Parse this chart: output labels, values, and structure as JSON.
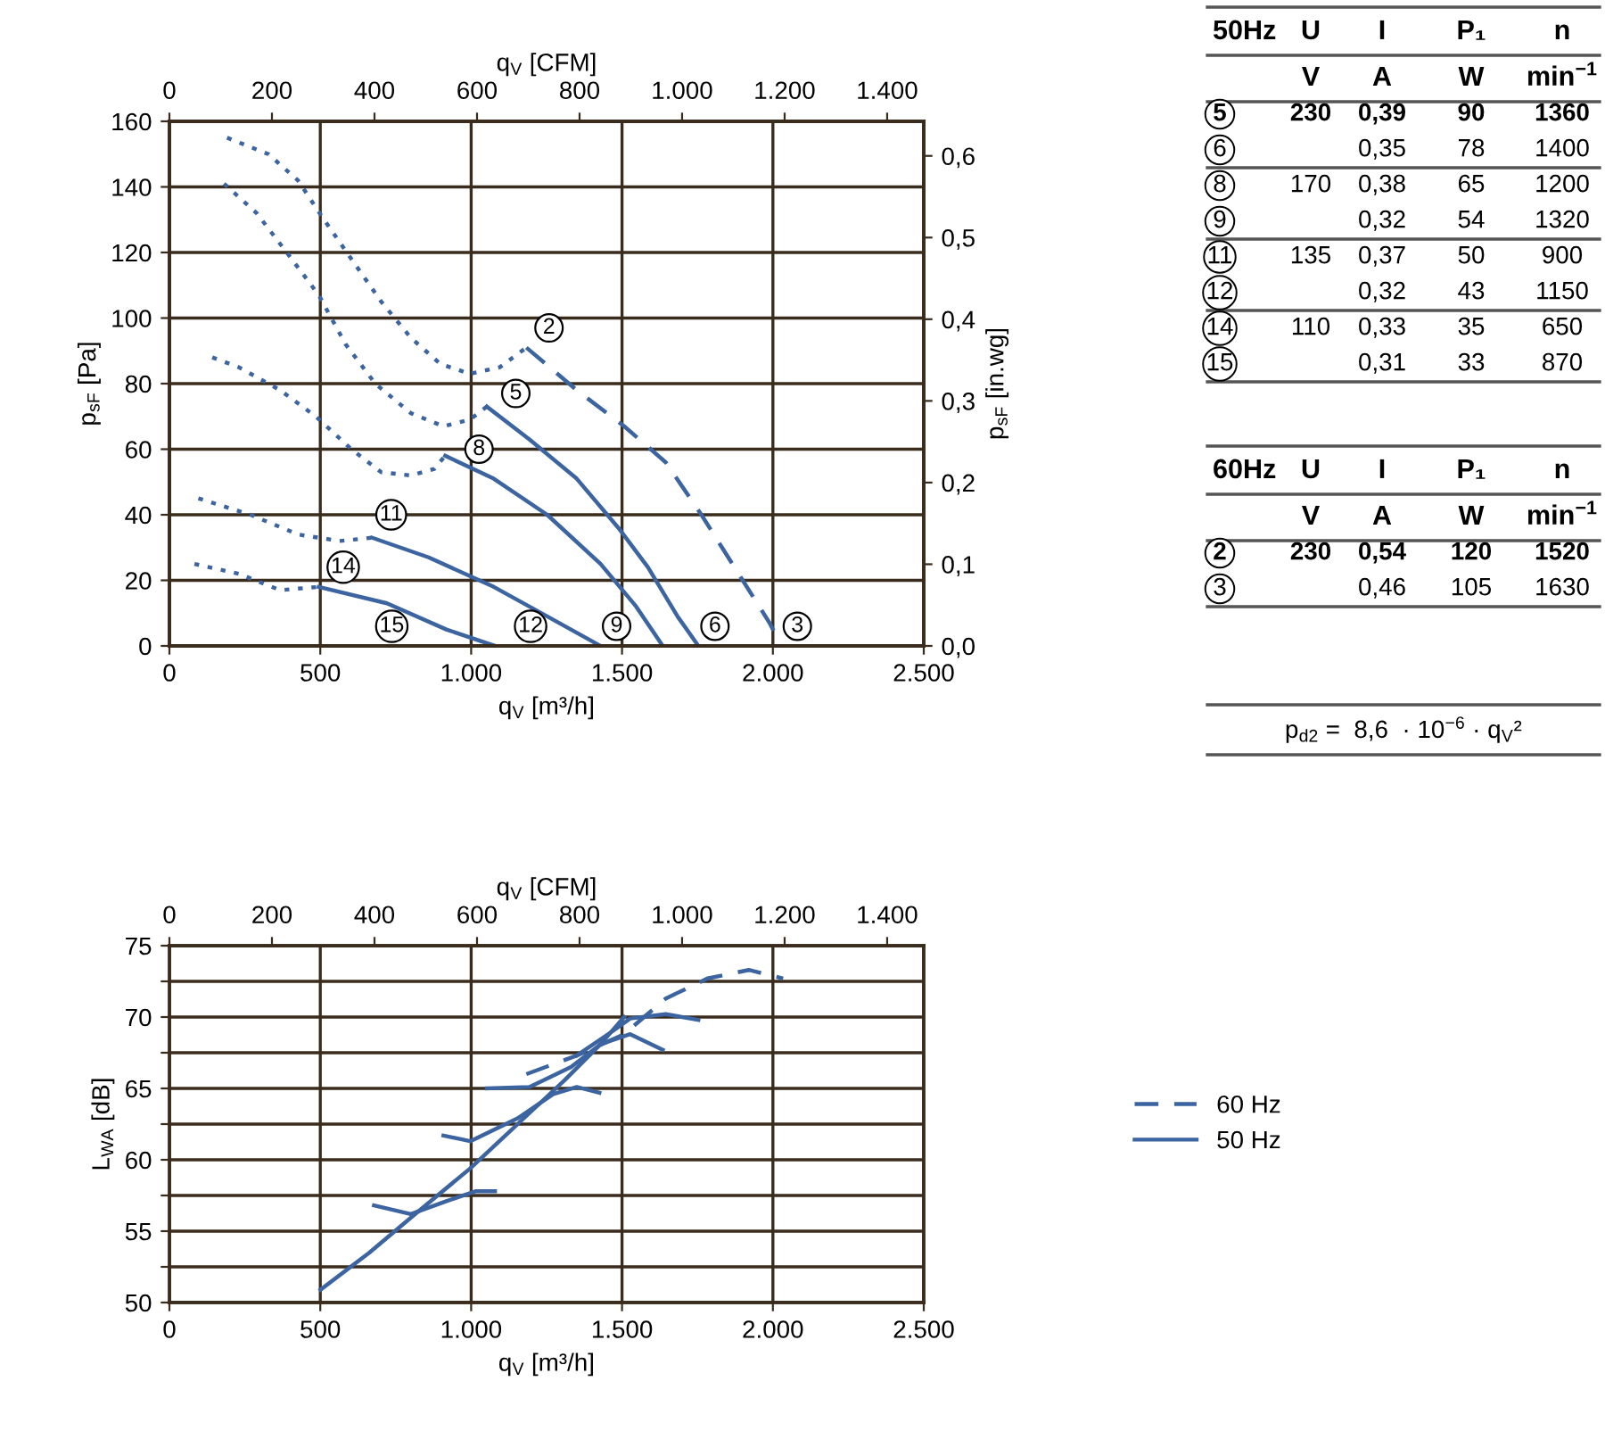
{
  "chart_data": [
    {
      "type": "line",
      "xlabel": "q$_{V}$ [m³/h]",
      "ylabel": "p$_{sF}$ [Pa]",
      "y2label": "p$_{sF}$ [in.wg]",
      "x2label": "q$_{V}$ [CFM]",
      "xlim": [
        0,
        2500
      ],
      "xticks": [
        0,
        500,
        {
          "value": 1000,
          "label": "1.000"
        },
        {
          "value": 1500,
          "label": "1.500"
        },
        {
          "value": 2000,
          "label": "2.000"
        },
        {
          "value": 2500,
          "label": "2.500"
        }
      ],
      "ylim": [
        0,
        160
      ],
      "yticks": [
        0,
        20,
        40,
        60,
        80,
        100,
        120,
        140,
        160
      ],
      "y2lim": [
        0,
        0.6423
      ],
      "y2ticks": [
        {
          "value": 0,
          "label": "0,0"
        },
        {
          "value": 0.1,
          "label": "0,1"
        },
        {
          "value": 0.2,
          "label": "0,2"
        },
        {
          "value": 0.3,
          "label": "0,3"
        },
        {
          "value": 0.4,
          "label": "0,4"
        },
        {
          "value": 0.5,
          "label": "0,5"
        },
        {
          "value": 0.6,
          "label": "0,6"
        }
      ],
      "x2lim": [
        0,
        1471.4
      ],
      "x2ticks": [
        0,
        200,
        400,
        600,
        800,
        {
          "value": 1000,
          "label": "1.000"
        },
        {
          "value": 1200,
          "label": "1.200"
        },
        {
          "value": 1400,
          "label": "1.400"
        }
      ],
      "grid": true,
      "marker": "none",
      "series": [
        {
          "type": "line",
          "line_style": "dotted",
          "color": "#3b64a0",
          "x": [
            191,
            328,
            426,
            505,
            603,
            702,
            800,
            898,
            996,
            1095,
            1183
          ],
          "values": [
            155,
            150,
            142,
            131,
            118,
            105,
            94,
            86,
            83,
            85,
            91
          ]
        },
        {
          "type": "line",
          "line_style": "dashed",
          "color": "#3b64a0",
          "x": [
            1183,
            1350,
            1507,
            1645,
            1763,
            1900,
            1989,
            2028
          ],
          "values": [
            91,
            78,
            67,
            56,
            40,
            20,
            7,
            0
          ]
        },
        {
          "type": "line",
          "line_style": "dotted",
          "color": "#3b64a0",
          "x": [
            181,
            289,
            397,
            495,
            584,
            682,
            800,
            908,
            996,
            1052
          ],
          "values": [
            141,
            132,
            119,
            107,
            92,
            80,
            71,
            67,
            69,
            73
          ]
        },
        {
          "type": "line",
          "line_style": "solid",
          "color": "#3b64a0",
          "x": [
            1052,
            1193,
            1350,
            1488,
            1586,
            1684,
            1753
          ],
          "values": [
            73,
            63,
            51,
            36,
            24,
            9,
            0
          ]
        },
        {
          "type": "line",
          "line_style": "dotted",
          "color": "#3b64a0",
          "x": [
            142,
            230,
            367,
            485,
            603,
            702,
            800,
            878,
            914
          ],
          "values": [
            88,
            85,
            78,
            70,
            60,
            53,
            52,
            54,
            58
          ]
        },
        {
          "type": "line",
          "line_style": "solid",
          "color": "#3b64a0",
          "x": [
            914,
            1075,
            1252,
            1429,
            1547,
            1635
          ],
          "values": [
            58,
            51,
            40,
            25,
            12,
            0
          ]
        },
        {
          "type": "line",
          "line_style": "dotted",
          "color": "#3b64a0",
          "x": [
            96,
            269,
            426,
            564,
            672
          ],
          "values": [
            45,
            40,
            34,
            32,
            33
          ]
        },
        {
          "type": "line",
          "line_style": "solid",
          "color": "#3b64a0",
          "x": [
            672,
            859,
            1075,
            1252,
            1429
          ],
          "values": [
            33,
            27,
            18,
            9,
            0
          ]
        },
        {
          "type": "line",
          "line_style": "dotted",
          "color": "#3b64a0",
          "x": [
            83,
            230,
            367,
            495
          ],
          "values": [
            25,
            22,
            17,
            18
          ]
        },
        {
          "type": "line",
          "line_style": "solid",
          "color": "#3b64a0",
          "x": [
            495,
            721,
            918,
            1079
          ],
          "values": [
            18,
            13,
            5,
            0
          ]
        }
      ],
      "annotations": [
        {
          "text": "2",
          "x": 1258,
          "y": 97
        },
        {
          "text": "5",
          "x": 1148,
          "y": 77
        },
        {
          "text": "8",
          "x": 1026,
          "y": 60
        },
        {
          "text": "11",
          "x": 735,
          "y": 40
        },
        {
          "text": "14",
          "x": 576,
          "y": 24
        },
        {
          "text": "15",
          "x": 737,
          "y": 6
        },
        {
          "text": "12",
          "x": 1197,
          "y": 6
        },
        {
          "text": "9",
          "x": 1482,
          "y": 6
        },
        {
          "text": "6",
          "x": 1808,
          "y": 6
        },
        {
          "text": "3",
          "x": 2081,
          "y": 6
        }
      ]
    },
    {
      "type": "line",
      "xlabel": "q$_{V}$ [m³/h]",
      "ylabel": "L$_{WA}$ [dB]",
      "x2label": "q$_{V}$ [CFM]",
      "xlim": [
        0,
        2500
      ],
      "xticks": [
        0,
        500,
        {
          "value": 1000,
          "label": "1.000"
        },
        {
          "value": 1500,
          "label": "1.500"
        },
        {
          "value": 2000,
          "label": "2.000"
        },
        {
          "value": 2500,
          "label": "2.500"
        }
      ],
      "ylim": [
        50,
        75
      ],
      "yticks": [
        50,
        {
          "value": 52.5,
          "label": null
        },
        55,
        {
          "value": 57.5,
          "label": null
        },
        60,
        {
          "value": 62.5,
          "label": null
        },
        65,
        {
          "value": 67.5,
          "label": null
        },
        70,
        {
          "value": 72.5,
          "label": null
        },
        75
      ],
      "x2lim": [
        0,
        1471.4
      ],
      "x2ticks": [
        0,
        200,
        400,
        600,
        800,
        {
          "value": 1000,
          "label": "1.000"
        },
        {
          "value": 1200,
          "label": "1.200"
        },
        {
          "value": 1400,
          "label": "1.400"
        }
      ],
      "grid": true,
      "legend": "right",
      "marker": "none",
      "series": [
        {
          "type": "line",
          "name": "60 Hz",
          "line_style": "dashed",
          "color": "#3b64a0",
          "x": [
            1183,
            1350,
            1507,
            1645,
            1783,
            1920,
            2034
          ],
          "values": [
            66.0,
            67.3,
            68.8,
            71.3,
            72.7,
            73.3,
            72.7
          ]
        },
        {
          "type": "line",
          "name": "50 Hz",
          "line_style": "solid",
          "color": "#3b64a0",
          "x": [
            501,
            663,
            820,
            997,
            1154,
            1311,
            1429,
            1507
          ],
          "values": [
            50.9,
            53.5,
            56.3,
            59.4,
            62.5,
            65.6,
            68.1,
            70.0
          ]
        },
        {
          "type": "line",
          "line_style": "solid",
          "color": "#3b64a0",
          "x": [
            1350,
            1468,
            1527,
            1645,
            1753
          ],
          "values": [
            67.3,
            69.0,
            69.9,
            70.2,
            69.8
          ]
        },
        {
          "type": "line",
          "line_style": "solid",
          "color": "#3b64a0",
          "x": [
            1052,
            1193,
            1331,
            1429,
            1527,
            1635
          ],
          "values": [
            65.0,
            65.1,
            66.5,
            68.1,
            68.8,
            67.7
          ]
        },
        {
          "type": "line",
          "line_style": "solid",
          "color": "#3b64a0",
          "x": [
            908,
            997,
            1154,
            1272,
            1350,
            1425
          ],
          "values": [
            61.7,
            61.3,
            62.9,
            64.6,
            65.1,
            64.7
          ]
        },
        {
          "type": "line",
          "line_style": "solid",
          "color": "#3b64a0",
          "x": [
            678,
            800,
            918,
            1016,
            1079
          ],
          "values": [
            56.8,
            56.2,
            57.1,
            57.8,
            57.8
          ]
        }
      ]
    },
    {
      "type": "other",
      "annotations": [
        "50Hz\tU\tI\tP₁\tn",
        "\tV\tA\tW\tmin$^{−1}$",
        "5\t230\t0,39\t90\t1360",
        "6\t\t0,35\t78\t1400",
        "8\t170\t0,38\t65\t1200",
        "9\t\t0,32\t54\t1320",
        "11\t135\t0,37\t50\t900",
        "12\t\t0,32\t43\t1150",
        "14\t110\t0,33\t35\t650",
        "15\t\t0,31\t33\t870"
      ]
    },
    {
      "type": "other",
      "annotations": [
        "60Hz\tU\tI\tP₁\tn",
        "\tV\tA\tW\tmin$^{−1}$",
        "2\t230\t0,54\t120\t1520",
        "3\t\t0,46\t105\t1630"
      ]
    },
    {
      "type": "other",
      "annotations": [
        "p$_{d2}$ =  8,6  · 10$^{−6}$ · q$_{V}$²"
      ]
    }
  ]
}
